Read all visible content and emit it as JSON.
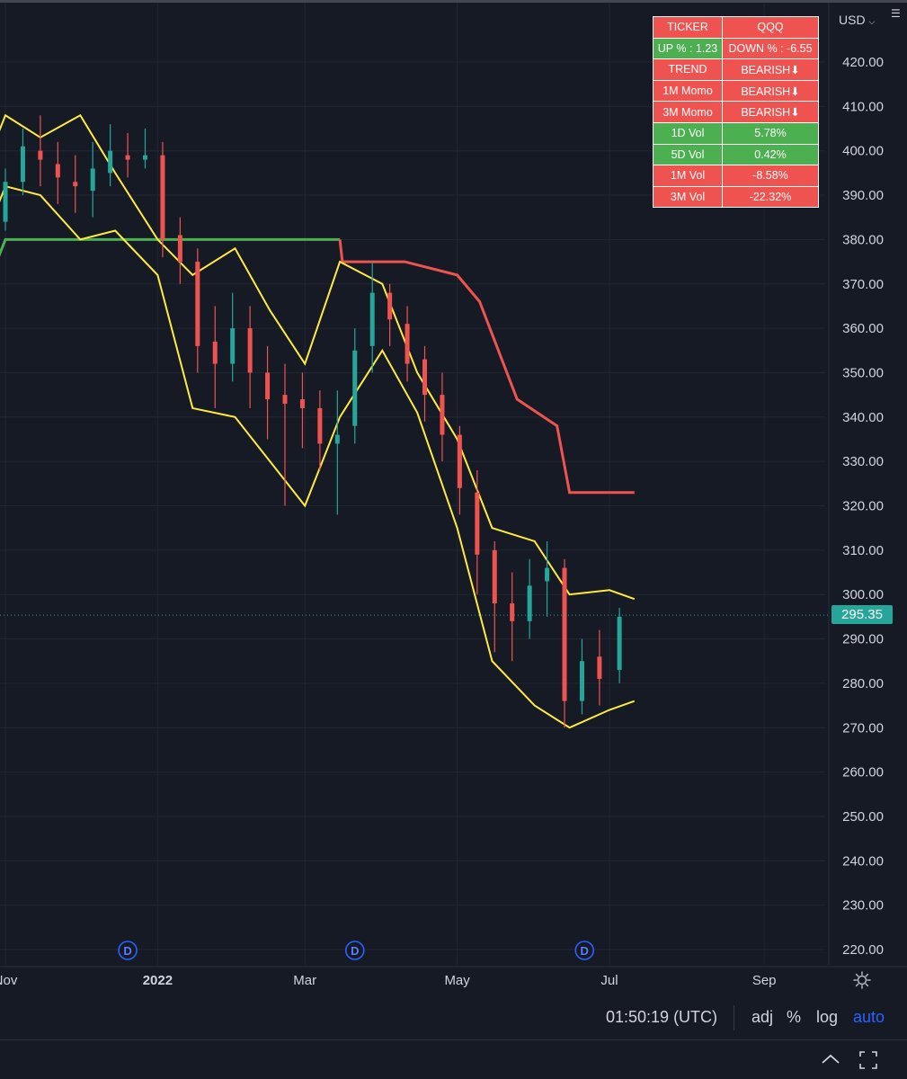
{
  "currency": {
    "label": "USD"
  },
  "price_axis": {
    "labels": [
      "420.00",
      "410.00",
      "400.00",
      "390.00",
      "380.00",
      "370.00",
      "360.00",
      "350.00",
      "340.00",
      "330.00",
      "320.00",
      "310.00",
      "300.00",
      "290.00",
      "280.00",
      "270.00",
      "260.00",
      "250.00",
      "240.00",
      "230.00",
      "220.00"
    ]
  },
  "time_axis": {
    "labels": [
      {
        "text": "Nov",
        "bold": false
      },
      {
        "text": "2022",
        "bold": true
      },
      {
        "text": "Mar",
        "bold": false
      },
      {
        "text": "May",
        "bold": false
      },
      {
        "text": "Jul",
        "bold": false
      },
      {
        "text": "Sep",
        "bold": false
      }
    ]
  },
  "last_price": "295.35",
  "dividend_marker": {
    "label": "D"
  },
  "ticker_table": {
    "rows": [
      {
        "left": "TICKER",
        "right": "QQQ",
        "left_color": "red",
        "right_color": "red"
      },
      {
        "left": "UP % : 1.23",
        "right": "DOWN % : -6.55",
        "left_color": "green",
        "right_color": "red"
      },
      {
        "left": "TREND",
        "right": "BEARISH⬇",
        "left_color": "red",
        "right_color": "red"
      },
      {
        "left": "1M Momo",
        "right": "BEARISH⬇",
        "left_color": "red",
        "right_color": "red"
      },
      {
        "left": "3M Momo",
        "right": "BEARISH⬇",
        "left_color": "red",
        "right_color": "red"
      },
      {
        "left": "1D Vol",
        "right": "5.78%",
        "left_color": "green",
        "right_color": "green"
      },
      {
        "left": "5D Vol",
        "right": "0.42%",
        "left_color": "green",
        "right_color": "green"
      },
      {
        "left": "1M Vol",
        "right": "-8.58%",
        "left_color": "red",
        "right_color": "red"
      },
      {
        "left": "3M Vol",
        "right": "-22.32%",
        "left_color": "red",
        "right_color": "red"
      }
    ]
  },
  "bottom_bar": {
    "clock": "01:50:19 (UTC)",
    "adj": "adj",
    "percent": "%",
    "log": "log",
    "auto": "auto"
  },
  "colors": {
    "background": "#161a25",
    "up_candle": "#26a69a",
    "down_candle": "#ef5350",
    "band": "#ffeb3b",
    "stop_red": "#ef5350",
    "stop_green": "#4caf50",
    "accent": "#2962ff"
  },
  "chart_data": {
    "type": "line",
    "title": "",
    "symbol": "QQQ",
    "xlabel": "",
    "ylabel": "",
    "ylim": [
      220,
      420
    ],
    "x_tick_labels": [
      "Nov",
      "2022",
      "Mar",
      "May",
      "Jul",
      "Sep"
    ],
    "grid": true,
    "series": [
      {
        "name": "",
        "style": "candlestick",
        "x": [
          "2021-10-25",
          "2021-11-01",
          "2021-11-08",
          "2021-11-15",
          "2021-11-22",
          "2021-11-29",
          "2021-12-06",
          "2021-12-13",
          "2021-12-20",
          "2021-12-27",
          "2022-01-03",
          "2022-01-10",
          "2022-01-17",
          "2022-01-24",
          "2022-01-31",
          "2022-02-07",
          "2022-02-14",
          "2022-02-21",
          "2022-02-28",
          "2022-03-07",
          "2022-03-14",
          "2022-03-21",
          "2022-03-28",
          "2022-04-04",
          "2022-04-11",
          "2022-04-18",
          "2022-04-25",
          "2022-05-02",
          "2022-05-09",
          "2022-05-16",
          "2022-05-23",
          "2022-05-30",
          "2022-06-06",
          "2022-06-13",
          "2022-06-20",
          "2022-06-27",
          "2022-07-05"
        ],
        "values": [
          382,
          393,
          401,
          398,
          394,
          392,
          396,
          400,
          398,
          399,
          380,
          375,
          356,
          352,
          360,
          350,
          344,
          343,
          342,
          334,
          336,
          355,
          368,
          362,
          352,
          345,
          336,
          324,
          309,
          298,
          294,
          302,
          306,
          276,
          285,
          281,
          295
        ],
        "open": [
          378,
          384,
          393,
          400,
          397,
          393,
          391,
          395,
          399,
          398,
          399,
          381,
          375,
          357,
          352,
          360,
          350,
          345,
          344,
          342,
          334,
          338,
          356,
          368,
          361,
          353,
          345,
          336,
          323,
          310,
          298,
          294,
          303,
          306,
          276,
          286,
          283
        ],
        "high": [
          388,
          396,
          405,
          408,
          402,
          399,
          402,
          406,
          404,
          405,
          402,
          385,
          378,
          365,
          368,
          365,
          356,
          352,
          350,
          346,
          346,
          360,
          375,
          370,
          365,
          356,
          350,
          338,
          328,
          312,
          305,
          308,
          312,
          308,
          290,
          292,
          297
        ],
        "low": [
          376,
          382,
          390,
          392,
          388,
          386,
          385,
          392,
          394,
          396,
          376,
          370,
          350,
          342,
          348,
          342,
          335,
          320,
          333,
          328,
          318,
          334,
          350,
          356,
          348,
          339,
          330,
          318,
          300,
          287,
          285,
          290,
          295,
          270,
          273,
          275,
          280
        ]
      },
      {
        "name": "",
        "style": "band_upper",
        "x": [
          "2021-10-18",
          "2021-11-01",
          "2021-11-15",
          "2021-12-01",
          "2021-12-15",
          "2022-01-01",
          "2022-01-15",
          "2022-02-01",
          "2022-02-15",
          "2022-03-01",
          "2022-03-15",
          "2022-04-01",
          "2022-04-15",
          "2022-05-01",
          "2022-05-15",
          "2022-06-01",
          "2022-06-15",
          "2022-07-01",
          "2022-07-11"
        ],
        "values": [
          388,
          408,
          403,
          408,
          395,
          380,
          372,
          378,
          364,
          352,
          375,
          370,
          350,
          335,
          315,
          312,
          300,
          301,
          299
        ]
      },
      {
        "name": "",
        "style": "band_lower",
        "x": [
          "2021-10-18",
          "2021-11-01",
          "2021-11-15",
          "2021-12-01",
          "2021-12-15",
          "2022-01-01",
          "2022-01-15",
          "2022-02-01",
          "2022-02-15",
          "2022-03-01",
          "2022-03-15",
          "2022-04-01",
          "2022-04-15",
          "2022-05-01",
          "2022-05-15",
          "2022-06-01",
          "2022-06-15",
          "2022-07-01",
          "2022-07-11"
        ],
        "values": [
          372,
          392,
          390,
          380,
          382,
          372,
          342,
          340,
          330,
          320,
          340,
          355,
          341,
          315,
          285,
          275,
          270,
          274,
          276
        ]
      },
      {
        "name": "",
        "style": "trailing_stop",
        "x": [
          "2021-10-18",
          "2021-10-25",
          "2021-11-01",
          "2022-03-15",
          "2022-03-16",
          "2022-04-10",
          "2022-05-01",
          "2022-05-10",
          "2022-05-25",
          "2022-06-10",
          "2022-06-15",
          "2022-07-11"
        ],
        "values": [
          362,
          370,
          380,
          380,
          375,
          375,
          372,
          366,
          344,
          338,
          323,
          323
        ]
      }
    ]
  }
}
